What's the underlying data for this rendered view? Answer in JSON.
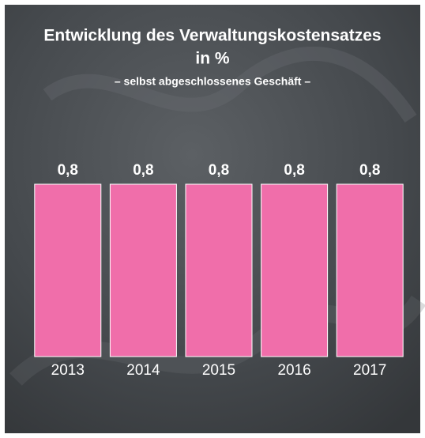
{
  "chart_data": {
    "type": "bar",
    "title": [
      "Entwicklung des Verwaltungskostensatzes",
      "in %"
    ],
    "subtitle": "– selbst abgeschlossenes Geschäft –",
    "categories": [
      "2013",
      "2014",
      "2015",
      "2016",
      "2017"
    ],
    "values": [
      0.8,
      0.8,
      0.8,
      0.8,
      0.8
    ],
    "value_labels": [
      "0,8",
      "0,8",
      "0,8",
      "0,8",
      "0,8"
    ],
    "color": "#f06eaa"
  }
}
